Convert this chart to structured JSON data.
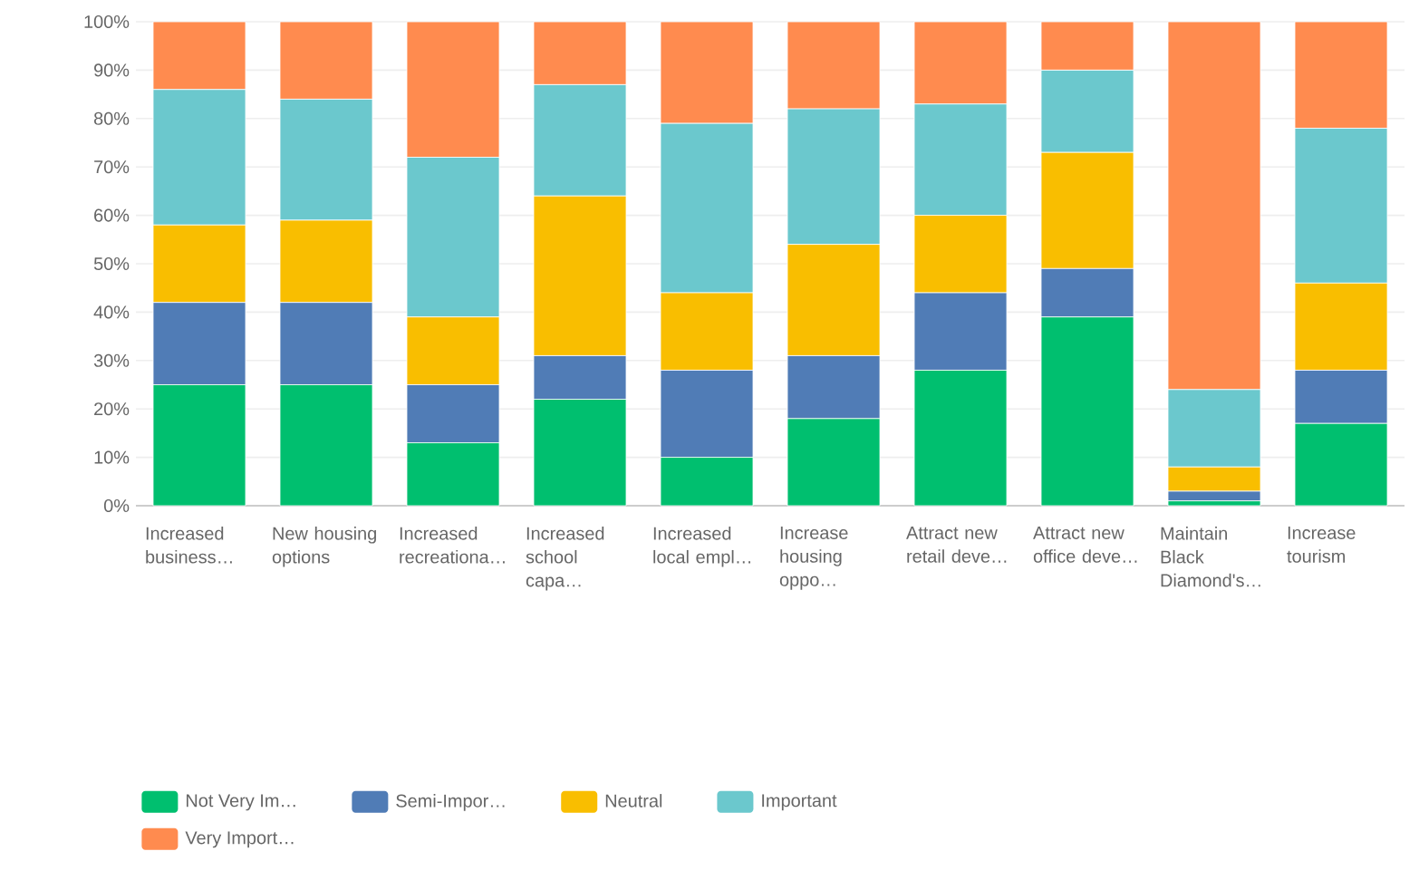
{
  "chart_data": {
    "type": "bar",
    "stacked": true,
    "grid": "y",
    "legend": "bottom",
    "categories": [
      "Increased business…",
      "New housing options",
      "Increased recreationa…",
      "Increased school capa…",
      "Increased local empl…",
      "Increase housing oppo…",
      "Attract new retail deve…",
      "Attract new office deve…",
      "Maintain Black Diamond's…",
      "Increase tourism"
    ],
    "series": [
      {
        "name": "Not Very Im…",
        "color": "#00bf6f",
        "values": [
          25,
          25,
          13,
          22,
          10,
          18,
          28,
          39,
          1,
          17
        ]
      },
      {
        "name": "Semi-Impor…",
        "color": "#507cb6",
        "values": [
          17,
          17,
          12,
          9,
          18,
          13,
          16,
          10,
          2,
          11
        ]
      },
      {
        "name": "Neutral",
        "color": "#f9be00",
        "values": [
          16,
          17,
          14,
          33,
          16,
          23,
          16,
          24,
          5,
          18
        ]
      },
      {
        "name": "Important",
        "color": "#6bc8cd",
        "values": [
          28,
          25,
          33,
          23,
          35,
          28,
          23,
          17,
          16,
          32
        ]
      },
      {
        "name": "Very Import…",
        "color": "#ff8b4f",
        "values": [
          14,
          16,
          28,
          13,
          21,
          18,
          17,
          10,
          76,
          22
        ]
      }
    ],
    "ylim": [
      0,
      100
    ],
    "yticks": [
      {
        "value": 0,
        "label": "0%"
      },
      {
        "value": 10,
        "label": "10%"
      },
      {
        "value": 20,
        "label": "20%"
      },
      {
        "value": 30,
        "label": "30%"
      },
      {
        "value": 40,
        "label": "40%"
      },
      {
        "value": 50,
        "label": "50%"
      },
      {
        "value": 60,
        "label": "60%"
      },
      {
        "value": 70,
        "label": "70%"
      },
      {
        "value": 80,
        "label": "80%"
      },
      {
        "value": 90,
        "label": "90%"
      },
      {
        "value": 100,
        "label": "100%"
      }
    ]
  }
}
